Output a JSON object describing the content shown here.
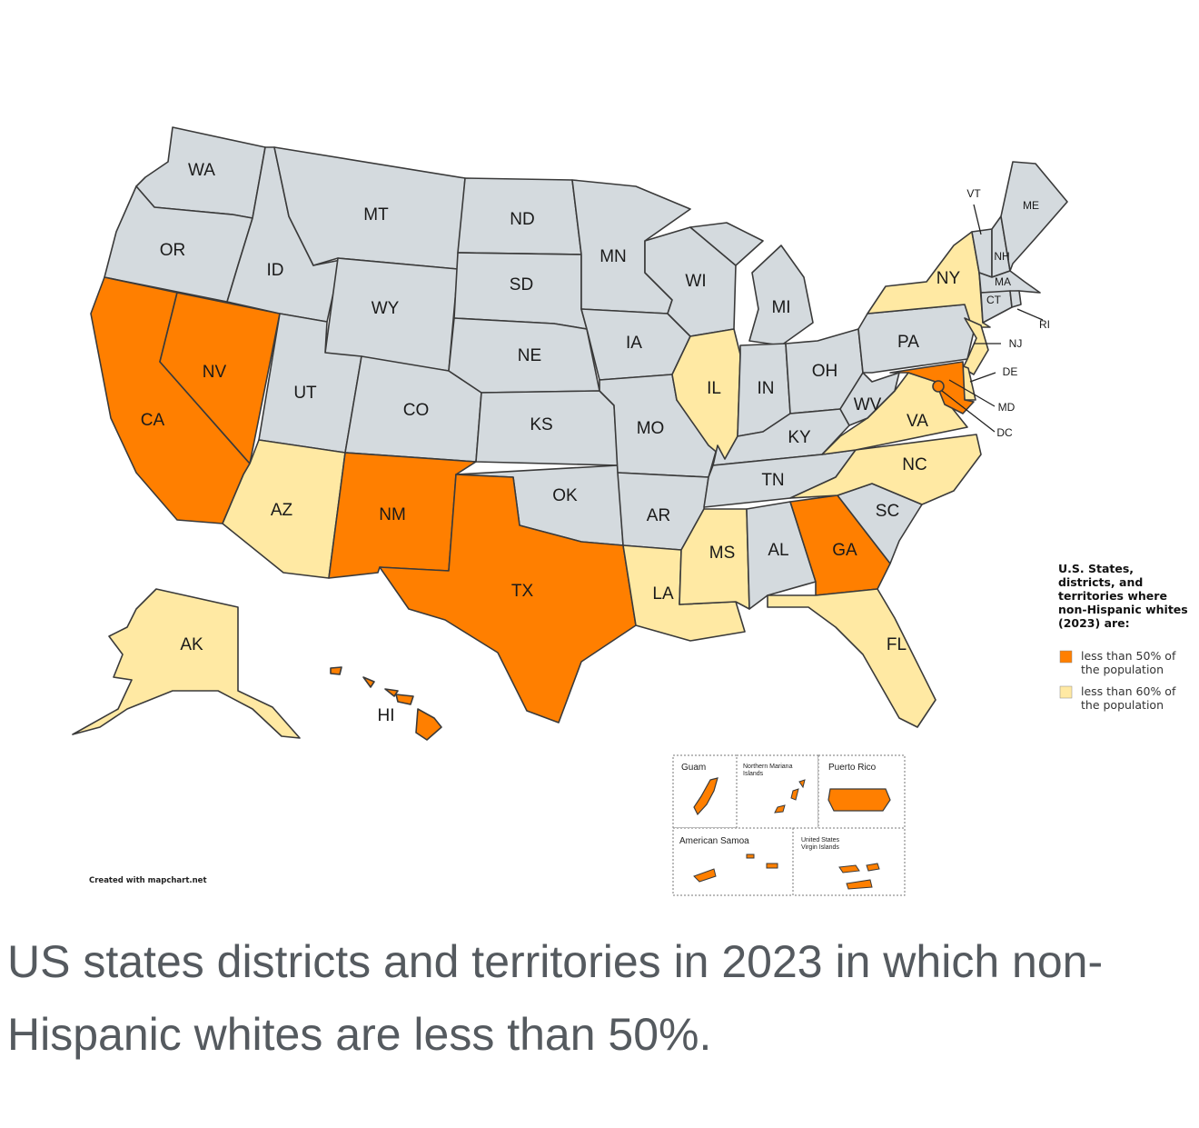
{
  "colors": {
    "under_50": "#ff7f00",
    "under_60": "#ffe9a3",
    "other": "#d4dade"
  },
  "legend": {
    "title_lines": [
      "U.S. States,",
      "districts, and",
      "territories where",
      "non-Hispanic whites",
      "(2023) are:"
    ],
    "items": [
      {
        "color_key": "under_50",
        "lines": [
          "less than 50% of",
          "the population"
        ]
      },
      {
        "color_key": "under_60",
        "lines": [
          "less than 60% of",
          "the population"
        ]
      }
    ]
  },
  "states": [
    {
      "code": "WA",
      "category": "other"
    },
    {
      "code": "OR",
      "category": "other"
    },
    {
      "code": "CA",
      "category": "under_50"
    },
    {
      "code": "NV",
      "category": "under_50"
    },
    {
      "code": "ID",
      "category": "other"
    },
    {
      "code": "MT",
      "category": "other"
    },
    {
      "code": "WY",
      "category": "other"
    },
    {
      "code": "UT",
      "category": "other"
    },
    {
      "code": "AZ",
      "category": "under_60"
    },
    {
      "code": "CO",
      "category": "other"
    },
    {
      "code": "NM",
      "category": "under_50"
    },
    {
      "code": "ND",
      "category": "other"
    },
    {
      "code": "SD",
      "category": "other"
    },
    {
      "code": "NE",
      "category": "other"
    },
    {
      "code": "KS",
      "category": "other"
    },
    {
      "code": "OK",
      "category": "other"
    },
    {
      "code": "TX",
      "category": "under_50"
    },
    {
      "code": "MN",
      "category": "other"
    },
    {
      "code": "IA",
      "category": "other"
    },
    {
      "code": "MO",
      "category": "other"
    },
    {
      "code": "AR",
      "category": "other"
    },
    {
      "code": "LA",
      "category": "under_60"
    },
    {
      "code": "WI",
      "category": "other"
    },
    {
      "code": "IL",
      "category": "under_60"
    },
    {
      "code": "MS",
      "category": "under_60"
    },
    {
      "code": "MI",
      "category": "other"
    },
    {
      "code": "IN",
      "category": "other"
    },
    {
      "code": "KY",
      "category": "other"
    },
    {
      "code": "TN",
      "category": "other"
    },
    {
      "code": "AL",
      "category": "other"
    },
    {
      "code": "OH",
      "category": "other"
    },
    {
      "code": "GA",
      "category": "under_50"
    },
    {
      "code": "FL",
      "category": "under_60"
    },
    {
      "code": "SC",
      "category": "other"
    },
    {
      "code": "NC",
      "category": "under_60"
    },
    {
      "code": "VA",
      "category": "under_60"
    },
    {
      "code": "WV",
      "category": "other"
    },
    {
      "code": "PA",
      "category": "other"
    },
    {
      "code": "NY",
      "category": "under_60"
    },
    {
      "code": "NJ",
      "category": "under_60"
    },
    {
      "code": "DE",
      "category": "under_60"
    },
    {
      "code": "MD",
      "category": "under_50"
    },
    {
      "code": "DC",
      "category": "under_50"
    },
    {
      "code": "VT",
      "category": "other"
    },
    {
      "code": "NH",
      "category": "other"
    },
    {
      "code": "ME",
      "category": "other"
    },
    {
      "code": "MA",
      "category": "other"
    },
    {
      "code": "CT",
      "category": "other"
    },
    {
      "code": "RI",
      "category": "other"
    },
    {
      "code": "AK",
      "category": "under_60"
    },
    {
      "code": "HI",
      "category": "under_50"
    }
  ],
  "territories": [
    {
      "name": "Guam",
      "category": "under_50"
    },
    {
      "name": "Northern Mariana Islands",
      "category": "under_50"
    },
    {
      "name": "Puerto Rico",
      "category": "under_50"
    },
    {
      "name": "American Samoa",
      "category": "under_50"
    },
    {
      "name": "United States Virgin Islands",
      "category": "under_50"
    }
  ],
  "territory_labels": {
    "guam": "Guam",
    "nmi_1": "Northern Mariana",
    "nmi_2": "Islands",
    "pr": "Puerto Rico",
    "as": "American Samoa",
    "vi_1": "United States",
    "vi_2": "Virgin Islands"
  },
  "credit": "Created with mapchart.net",
  "caption": "US states districts and territories in 2023 in which non-Hispanic whites are less than 50%."
}
